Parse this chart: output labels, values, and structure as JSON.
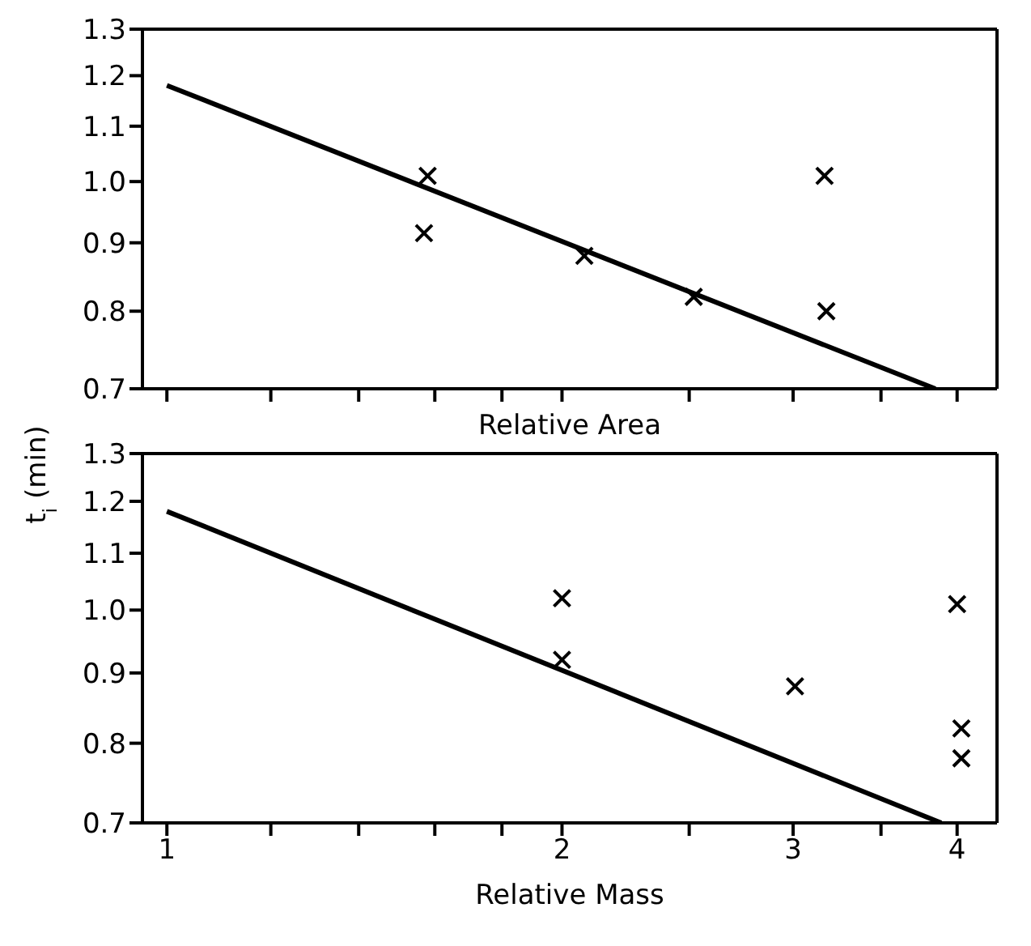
{
  "chart_data": [
    {
      "type": "scatter",
      "xlabel": "Relative Area",
      "ylabel": "t$_{i}$ (min)",
      "log": "xy",
      "xlim": [
        0.958,
        4.29
      ],
      "ylim": [
        0.7,
        1.3
      ],
      "xticks": [
        1,
        {
          "value": 1.2,
          "label": null
        },
        {
          "value": 1.4,
          "label": null
        },
        {
          "value": 1.6,
          "label": null
        },
        {
          "value": 1.8,
          "label": null
        },
        2,
        {
          "value": 2.5,
          "label": null
        },
        3,
        {
          "value": 3.5,
          "label": null
        },
        4
      ],
      "yticks": [
        0.7,
        0.8,
        0.9,
        {
          "value": 1,
          "label": "1.0"
        },
        1.1,
        1.2,
        1.3
      ],
      "tick_labels": "y",
      "grid": false,
      "legend": false,
      "series": [
        {
          "marker": "cross",
          "color": "#000000",
          "x": [
            1.58,
            1.57,
            2.08,
            2.52,
            3.17,
            3.18
          ],
          "values": [
            1.01,
            0.915,
            0.88,
            0.82,
            1.01,
            0.8
          ]
        },
        {
          "type": "line",
          "marker": "none",
          "line_style": "solid",
          "color": "#000000",
          "x": [
            1,
            3.85
          ],
          "values": [
            1.18,
            0.7
          ]
        }
      ]
    },
    {
      "type": "scatter",
      "xlabel": "Relative Mass",
      "log": "xy",
      "xlim": [
        0.958,
        4.29
      ],
      "ylim": [
        0.7,
        1.3
      ],
      "xticks": [
        1,
        {
          "value": 1.2,
          "label": null
        },
        {
          "value": 1.4,
          "label": null
        },
        {
          "value": 1.6,
          "label": null
        },
        {
          "value": 1.8,
          "label": null
        },
        2,
        {
          "value": 2.5,
          "label": null
        },
        3,
        {
          "value": 3.5,
          "label": null
        },
        4
      ],
      "yticks": [
        0.7,
        0.8,
        0.9,
        {
          "value": 1,
          "label": "1.0"
        },
        1.1,
        1.2,
        1.3
      ],
      "grid": false,
      "legend": false,
      "series": [
        {
          "marker": "cross",
          "color": "#000000",
          "x": [
            2.0,
            2.0,
            3.01,
            4.0,
            4.03,
            4.03
          ],
          "values": [
            1.02,
            0.92,
            0.88,
            1.01,
            0.82,
            0.78
          ]
        },
        {
          "type": "line",
          "marker": "none",
          "line_style": "solid",
          "color": "#000000",
          "x": [
            1,
            3.89
          ],
          "values": [
            1.18,
            0.7
          ]
        }
      ]
    }
  ]
}
